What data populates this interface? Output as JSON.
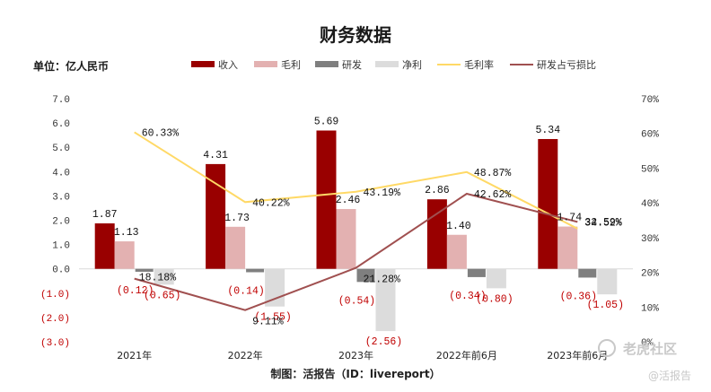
{
  "chart_data": {
    "type": "bar",
    "title": "财务数据",
    "unit_label": "单位：亿人民币",
    "categories": [
      "2021年",
      "2022年",
      "2023年",
      "2022年前6月",
      "2023年前6月"
    ],
    "y_left": {
      "range": [
        -3.0,
        7.0
      ],
      "ticks": [
        "7.0",
        "6.0",
        "5.0",
        "4.0",
        "3.0",
        "2.0",
        "1.0",
        "0.0",
        "(1.0)",
        "(2.0)",
        "(3.0)"
      ]
    },
    "y_right": {
      "range": [
        0,
        70
      ],
      "ticks": [
        "70%",
        "60%",
        "50%",
        "40%",
        "30%",
        "20%",
        "10%",
        "0%"
      ]
    },
    "series": [
      {
        "name": "收入",
        "kind": "bar",
        "color": "#990000",
        "values": [
          1.87,
          4.31,
          5.69,
          2.86,
          5.34
        ],
        "labels": [
          "1.87",
          "4.31",
          "5.69",
          "2.86",
          "5.34"
        ]
      },
      {
        "name": "毛利",
        "kind": "bar",
        "color": "#e3b1b1",
        "values": [
          1.13,
          1.73,
          2.46,
          1.4,
          1.74
        ],
        "labels": [
          "1.13",
          "1.73",
          "2.46",
          "1.40",
          "1.74"
        ]
      },
      {
        "name": "研发",
        "kind": "bar",
        "color": "#7f7f7f",
        "values": [
          -0.12,
          -0.14,
          -0.54,
          -0.34,
          -0.36
        ],
        "labels": [
          "(0.12)",
          "(0.14)",
          "(0.54)",
          "(0.34)",
          "(0.36)"
        ]
      },
      {
        "name": "净利",
        "kind": "bar",
        "color": "#dcdcdc",
        "values": [
          -0.65,
          -1.55,
          -2.56,
          -0.8,
          -1.05
        ],
        "labels": [
          "(0.65)",
          "(1.55)",
          "(2.56)",
          "(0.80)",
          "(1.05)"
        ]
      },
      {
        "name": "毛利率",
        "kind": "line",
        "axis": "right",
        "color": "#ffd966",
        "values": [
          60.33,
          40.22,
          43.19,
          48.87,
          32.59
        ],
        "labels": [
          "60.33%",
          "40.22%",
          "43.19%",
          "48.87%",
          "32.59%"
        ]
      },
      {
        "name": "研发占亏损比",
        "kind": "line",
        "axis": "right",
        "color": "#a05050",
        "values": [
          18.18,
          9.11,
          21.28,
          42.62,
          34.52
        ],
        "labels": [
          "18.18%",
          "9.11%",
          "21.28%",
          "42.62%",
          "34.52%"
        ]
      }
    ],
    "legend_position": "top",
    "footer": "制图：活报告（ID：livereport）",
    "watermark": "老虎社区",
    "watermark_sub": "@活报告"
  }
}
